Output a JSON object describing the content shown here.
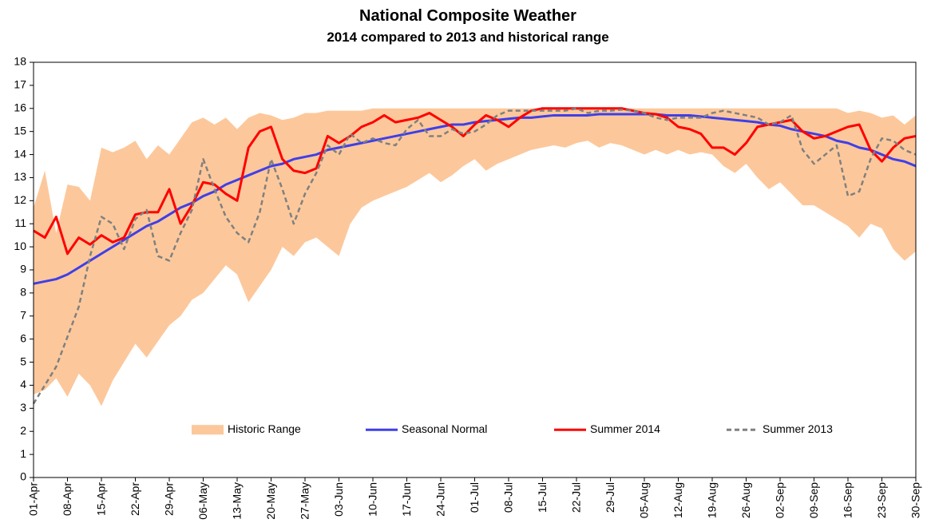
{
  "chart_data": {
    "type": "line",
    "title": "National Composite Weather",
    "subtitle": "2014 compared to 2013 and historical range",
    "categories": [
      "01-Apr",
      null,
      null,
      "08-Apr",
      null,
      null,
      "15-Apr",
      null,
      null,
      "22-Apr",
      null,
      null,
      "29-Apr",
      null,
      null,
      "06-May",
      null,
      null,
      "13-May",
      null,
      null,
      "20-May",
      null,
      null,
      "27-May",
      null,
      null,
      "03-Jun",
      null,
      null,
      "10-Jun",
      null,
      null,
      "17-Jun",
      null,
      null,
      "24-Jun",
      null,
      null,
      "01-Jul",
      null,
      null,
      "08-Jul",
      null,
      null,
      "15-Jul",
      null,
      null,
      "22-Jul",
      null,
      null,
      "29-Jul",
      null,
      null,
      "05-Aug",
      null,
      null,
      "12-Aug",
      null,
      null,
      "19-Aug",
      null,
      null,
      "26-Aug",
      null,
      null,
      "02-Sep",
      null,
      null,
      "09-Sep",
      null,
      null,
      "16-Sep",
      null,
      null,
      "23-Sep",
      null,
      null,
      "30-Sep"
    ],
    "ylim": [
      0,
      18
    ],
    "yticks": [
      0,
      1,
      2,
      3,
      4,
      5,
      6,
      7,
      8,
      9,
      10,
      11,
      12,
      13,
      14,
      15,
      16,
      17,
      18
    ],
    "grid": false,
    "legend": "bottom",
    "series": [
      {
        "name": "Historic Range",
        "type": "band",
        "color": "#fcc89b",
        "low": [
          3.6,
          3.8,
          4.3,
          3.5,
          4.5,
          4.0,
          3.1,
          4.2,
          5.0,
          5.8,
          5.2,
          5.9,
          6.6,
          7.0,
          7.7,
          8.0,
          8.6,
          9.2,
          8.8,
          7.6,
          8.3,
          9.0,
          10.0,
          9.6,
          10.2,
          10.4,
          10.0,
          9.6,
          11.0,
          11.7,
          12.0,
          12.2,
          12.4,
          12.6,
          12.9,
          13.2,
          12.8,
          13.1,
          13.5,
          13.8,
          13.3,
          13.6,
          13.8,
          14.0,
          14.2,
          14.3,
          14.4,
          14.3,
          14.5,
          14.6,
          14.3,
          14.5,
          14.4,
          14.2,
          14.0,
          14.2,
          14.0,
          14.2,
          14.0,
          14.1,
          14.0,
          13.5,
          13.2,
          13.6,
          13.0,
          12.5,
          12.8,
          12.3,
          11.8,
          11.8,
          11.5,
          11.2,
          10.9,
          10.4,
          11.0,
          10.8,
          9.9,
          9.4,
          9.8
        ],
        "high": [
          11.7,
          13.3,
          10.6,
          12.7,
          12.6,
          12.0,
          14.3,
          14.1,
          14.3,
          14.6,
          13.8,
          14.4,
          14.0,
          14.7,
          15.4,
          15.6,
          15.3,
          15.6,
          15.1,
          15.6,
          15.8,
          15.7,
          15.5,
          15.6,
          15.8,
          15.8,
          15.9,
          15.9,
          15.9,
          15.9,
          16.0,
          16.0,
          16.0,
          16.0,
          16.0,
          16.0,
          16.0,
          16.0,
          16.0,
          16.0,
          16.0,
          16.0,
          16.0,
          16.0,
          16.0,
          16.0,
          16.0,
          16.0,
          16.0,
          16.0,
          16.0,
          16.0,
          16.0,
          16.0,
          16.0,
          16.0,
          16.0,
          16.0,
          16.0,
          16.0,
          16.0,
          16.0,
          16.0,
          16.0,
          16.0,
          16.0,
          16.0,
          16.0,
          16.0,
          16.0,
          16.0,
          16.0,
          15.8,
          15.9,
          15.8,
          15.6,
          15.7,
          15.3,
          15.7
        ]
      },
      {
        "name": "Seasonal Normal",
        "color": "#3f3fe8",
        "dash": false,
        "values": [
          8.4,
          8.5,
          8.6,
          8.8,
          9.1,
          9.4,
          9.7,
          10.0,
          10.3,
          10.6,
          10.9,
          11.1,
          11.4,
          11.7,
          11.9,
          12.2,
          12.4,
          12.7,
          12.9,
          13.1,
          13.3,
          13.5,
          13.6,
          13.8,
          13.9,
          14.0,
          14.2,
          14.3,
          14.4,
          14.5,
          14.6,
          14.7,
          14.8,
          14.9,
          15.0,
          15.1,
          15.2,
          15.3,
          15.3,
          15.4,
          15.45,
          15.5,
          15.55,
          15.6,
          15.6,
          15.65,
          15.7,
          15.7,
          15.7,
          15.7,
          15.75,
          15.75,
          15.75,
          15.75,
          15.75,
          15.75,
          15.7,
          15.7,
          15.7,
          15.65,
          15.6,
          15.55,
          15.5,
          15.45,
          15.4,
          15.3,
          15.25,
          15.1,
          15.0,
          14.9,
          14.8,
          14.6,
          14.5,
          14.3,
          14.2,
          14.0,
          13.8,
          13.7,
          13.5
        ]
      },
      {
        "name": "Summer 2014",
        "color": "#ff0000",
        "dash": false,
        "values": [
          10.7,
          10.4,
          11.3,
          9.7,
          10.4,
          10.1,
          10.5,
          10.2,
          10.4,
          11.4,
          11.5,
          11.5,
          12.5,
          11.0,
          11.8,
          12.8,
          12.7,
          12.3,
          12.0,
          14.3,
          15.0,
          15.2,
          13.8,
          13.3,
          13.2,
          13.4,
          14.8,
          14.5,
          14.8,
          15.2,
          15.4,
          15.7,
          15.4,
          15.5,
          15.6,
          15.8,
          15.5,
          15.2,
          14.8,
          15.3,
          15.7,
          15.5,
          15.2,
          15.6,
          15.9,
          16.0,
          16.0,
          16.0,
          16.0,
          16.0,
          16.0,
          16.0,
          16.0,
          15.9,
          15.8,
          15.75,
          15.6,
          15.2,
          15.1,
          14.9,
          14.3,
          14.3,
          14.0,
          14.5,
          15.2,
          15.3,
          15.4,
          15.5,
          15.0,
          14.7,
          14.8,
          15.0,
          15.2,
          15.3,
          14.2,
          13.7,
          14.3,
          14.7,
          14.8
        ]
      },
      {
        "name": "Summer 2013",
        "color": "#808080",
        "dash": true,
        "values": [
          3.2,
          4.0,
          4.8,
          6.1,
          7.4,
          9.6,
          11.3,
          11.0,
          9.9,
          11.2,
          11.6,
          9.6,
          9.4,
          10.6,
          11.6,
          13.8,
          12.5,
          11.3,
          10.6,
          10.2,
          11.5,
          13.8,
          12.5,
          11.0,
          12.3,
          13.2,
          14.4,
          14.0,
          14.9,
          14.5,
          14.7,
          14.5,
          14.4,
          15.1,
          15.5,
          14.8,
          14.8,
          15.1,
          14.9,
          15.0,
          15.3,
          15.7,
          15.9,
          15.9,
          15.9,
          15.9,
          15.9,
          15.9,
          16.0,
          15.8,
          15.9,
          15.9,
          15.95,
          15.9,
          15.8,
          15.6,
          15.5,
          15.6,
          15.6,
          15.6,
          15.8,
          15.9,
          15.8,
          15.7,
          15.6,
          15.3,
          15.4,
          15.7,
          14.2,
          13.6,
          14.0,
          14.4,
          12.2,
          12.4,
          13.8,
          14.7,
          14.6,
          14.2,
          14.0
        ]
      }
    ]
  }
}
